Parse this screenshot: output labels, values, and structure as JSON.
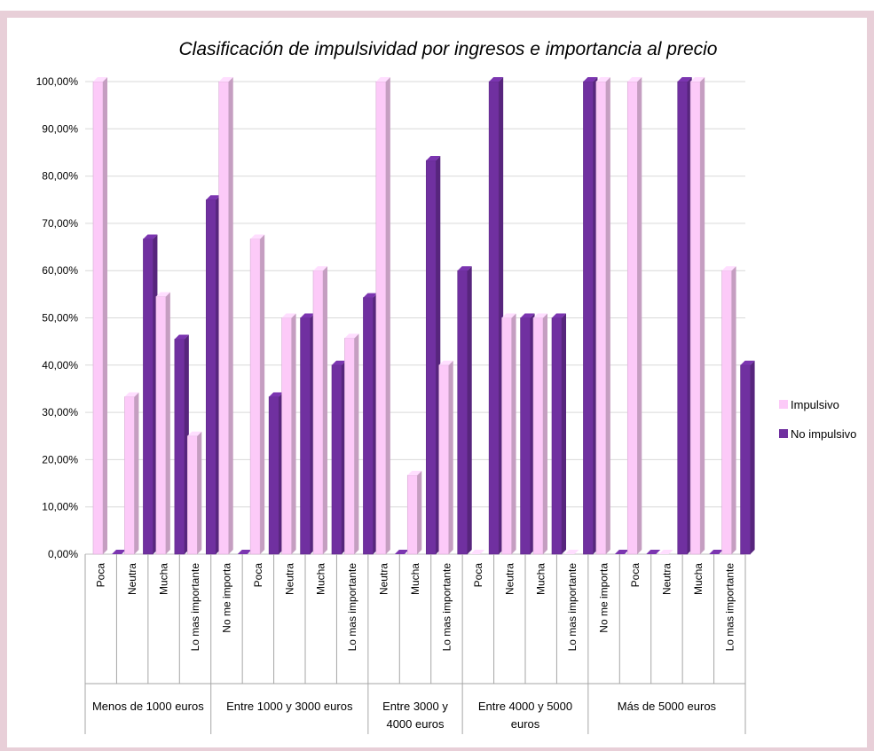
{
  "chart_data": {
    "type": "bar",
    "title": "Clasificación de impulsividad por ingresos e importancia al precio",
    "ylim": [
      0,
      100
    ],
    "y_ticks": [
      "0,00%",
      "10,00%",
      "20,00%",
      "30,00%",
      "40,00%",
      "50,00%",
      "60,00%",
      "70,00%",
      "80,00%",
      "90,00%",
      "100,00%"
    ],
    "groups": [
      {
        "label": "Menos de 1000 euros",
        "categories": [
          "Poca",
          "Neutra",
          "Mucha",
          "Lo mas importante"
        ]
      },
      {
        "label": "Entre 1000 y 3000 euros",
        "categories": [
          "No me importa",
          "Poca",
          "Neutra",
          "Mucha",
          "Lo mas importante"
        ]
      },
      {
        "label": "Entre 3000 y 4000 euros",
        "categories": [
          "Neutra",
          "Mucha",
          "Lo mas importante"
        ]
      },
      {
        "label": "Entre 4000 y 5000 euros",
        "categories": [
          "Poca",
          "Neutra",
          "Mucha",
          "Lo mas importante"
        ]
      },
      {
        "label": "Más de 5000 euros",
        "categories": [
          "No me importa",
          "Poca",
          "Neutra",
          "Mucha",
          "Lo mas importante"
        ]
      }
    ],
    "series": [
      {
        "name": "Impulsivo",
        "color": "#fccaf8",
        "values": [
          100,
          33.3,
          54.5,
          25,
          100,
          66.7,
          50,
          60,
          45.7,
          100,
          16.7,
          40,
          0,
          50,
          50,
          0,
          100,
          100,
          0,
          100,
          60
        ]
      },
      {
        "name": "No impulsivo",
        "color": "#7030a0",
        "values": [
          0,
          66.7,
          45.5,
          75,
          0,
          33.3,
          50,
          40,
          54.3,
          0,
          83.3,
          60,
          100,
          50,
          50,
          100,
          0,
          0,
          100,
          0,
          40
        ]
      }
    ],
    "grid": true,
    "legend_position": "right"
  }
}
